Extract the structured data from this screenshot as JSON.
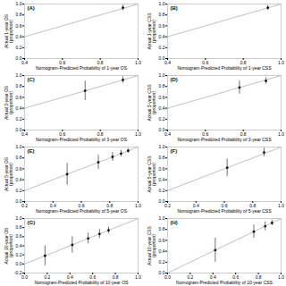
{
  "chart_data": [
    {
      "type": "scatter",
      "annotation": "(A)",
      "x_label": "Nomogram-Predicted Probability of 1-year OS",
      "y_label": "Actual 1-year OS\n(proportion)",
      "xlim": [
        0.4,
        1.0
      ],
      "ylim": [
        0.0,
        1.0
      ],
      "xticks": [
        0.4,
        0.6,
        0.8,
        {
          "value": 1.0,
          "label": "1.0"
        }
      ],
      "yticks": [
        {
          "value": 0.0,
          "label": "0.0"
        },
        0.2,
        0.4,
        0.6,
        0.8,
        {
          "value": 1.0,
          "label": "1.0"
        }
      ],
      "series": [
        {
          "type": "line",
          "color": "#b0b0b0",
          "x": [
            0,
            1
          ],
          "values": [
            0,
            1
          ]
        },
        {
          "type": "scatter",
          "color": "#111111",
          "marker": "circle",
          "x": [
            0.92
          ],
          "values": [
            0.93
          ],
          "errors_lo": [
            0.05
          ],
          "errors_hi": [
            0.05
          ]
        }
      ]
    },
    {
      "type": "scatter",
      "annotation": "(B)",
      "x_label": "Nomogram-Predicted Probability of 1-year CSS",
      "y_label": "Actual 1-year CSS\n(proportion)",
      "xlim": [
        0.4,
        1.0
      ],
      "ylim": [
        0.0,
        1.0
      ],
      "xticks": [
        0.4,
        0.6,
        0.8,
        {
          "value": 1.0,
          "label": "1.0"
        }
      ],
      "yticks": [
        {
          "value": 0.0,
          "label": "0.0"
        },
        0.2,
        0.4,
        0.6,
        0.8,
        {
          "value": 1.0,
          "label": "1.0"
        }
      ],
      "series": [
        {
          "type": "line",
          "color": "#b0b0b0",
          "x": [
            0,
            1
          ],
          "values": [
            0,
            1
          ]
        },
        {
          "type": "scatter",
          "color": "#111111",
          "marker": "circle",
          "x": [
            0.93
          ],
          "values": [
            0.93
          ],
          "errors_lo": [
            0.04
          ],
          "errors_hi": [
            0.04
          ]
        }
      ]
    },
    {
      "type": "scatter",
      "annotation": "(C)",
      "x_label": "Nomogram-Predicted Probability of 3-year OS",
      "y_label": "Actual 3-year OS\n(proportion)",
      "xlim": [
        0.4,
        1.0
      ],
      "ylim": [
        0.0,
        1.0
      ],
      "xticks": [
        0.4,
        0.6,
        0.8,
        {
          "value": 1.0,
          "label": "1.0"
        }
      ],
      "yticks": [
        {
          "value": 0.0,
          "label": "0.0"
        },
        0.2,
        0.4,
        0.6,
        0.8,
        {
          "value": 1.0,
          "label": "1.0"
        }
      ],
      "series": [
        {
          "type": "line",
          "color": "#b0b0b0",
          "x": [
            0,
            1
          ],
          "values": [
            0,
            1
          ]
        },
        {
          "type": "scatter",
          "color": "#111111",
          "marker": "circle",
          "x": [
            0.72,
            0.92
          ],
          "values": [
            0.72,
            0.92
          ],
          "errors_lo": [
            0.18,
            0.06
          ],
          "errors_hi": [
            0.18,
            0.06
          ]
        }
      ]
    },
    {
      "type": "scatter",
      "annotation": "(D)",
      "x_label": "Nomogram-Predicted Probability of 3-year CSS",
      "y_label": "Actual 3-year CSS\n(proportion)",
      "xlim": [
        0.4,
        1.0
      ],
      "ylim": [
        0.0,
        1.0
      ],
      "xticks": [
        0.4,
        0.6,
        0.8,
        {
          "value": 1.0,
          "label": "1.0"
        }
      ],
      "yticks": [
        {
          "value": 0.0,
          "label": "0.0"
        },
        0.2,
        0.4,
        0.6,
        0.8,
        {
          "value": 1.0,
          "label": "1.0"
        }
      ],
      "series": [
        {
          "type": "line",
          "color": "#b0b0b0",
          "x": [
            0,
            1
          ],
          "values": [
            0,
            1
          ]
        },
        {
          "type": "scatter",
          "color": "#111111",
          "marker": "circle",
          "x": [
            0.78,
            0.92
          ],
          "values": [
            0.78,
            0.9
          ],
          "errors_lo": [
            0.12,
            0.06
          ],
          "errors_hi": [
            0.12,
            0.06
          ]
        }
      ]
    },
    {
      "type": "scatter",
      "annotation": "(E)",
      "x_label": "Nomogram-Predicted Probability of 5-year OS",
      "y_label": "Actual 5-year OS\n(proportion)",
      "xlim": [
        0.2,
        1.0
      ],
      "ylim": [
        0.0,
        1.0
      ],
      "xticks": [
        0.2,
        0.4,
        0.6,
        0.8,
        {
          "value": 1.0,
          "label": "1.0"
        }
      ],
      "yticks": [
        {
          "value": 0.0,
          "label": "0.0"
        },
        0.2,
        0.4,
        0.6,
        0.8,
        {
          "value": 1.0,
          "label": "1.0"
        }
      ],
      "series": [
        {
          "type": "line",
          "color": "#b0b0b0",
          "x": [
            0,
            1
          ],
          "values": [
            0,
            1
          ]
        },
        {
          "type": "scatter",
          "color": "#111111",
          "marker": "circle",
          "x": [
            0.5,
            0.72,
            0.82,
            0.88,
            0.93
          ],
          "values": [
            0.5,
            0.72,
            0.82,
            0.88,
            0.93
          ],
          "errors_lo": [
            0.2,
            0.13,
            0.08,
            0.06,
            0.04
          ],
          "errors_hi": [
            0.2,
            0.13,
            0.08,
            0.06,
            0.04
          ]
        }
      ]
    },
    {
      "type": "scatter",
      "annotation": "(F)",
      "x_label": "Nomogram-Predicted Probability of 5-year CSS",
      "y_label": "Actual 5-year CSS\n(proportion)",
      "xlim": [
        0.2,
        1.0
      ],
      "ylim": [
        0.0,
        1.0
      ],
      "xticks": [
        0.2,
        0.4,
        0.6,
        0.8,
        {
          "value": 1.0,
          "label": "1.0"
        }
      ],
      "yticks": [
        {
          "value": 0.0,
          "label": "0.0"
        },
        0.2,
        0.4,
        0.6,
        0.8,
        {
          "value": 1.0,
          "label": "1.0"
        }
      ],
      "series": [
        {
          "type": "line",
          "color": "#b0b0b0",
          "x": [
            0,
            1
          ],
          "values": [
            0,
            1
          ]
        },
        {
          "type": "scatter",
          "color": "#111111",
          "marker": "circle",
          "x": [
            0.62,
            0.88
          ],
          "values": [
            0.62,
            0.9
          ],
          "errors_lo": [
            0.16,
            0.08
          ],
          "errors_hi": [
            0.16,
            0.08
          ]
        }
      ]
    },
    {
      "type": "scatter",
      "annotation": "(G)",
      "x_label": "Nomogram-Predicted Probability of 10-year OS",
      "y_label": "Actual 10-year OS\n(proportion)",
      "xlim": [
        0.0,
        1.0
      ],
      "ylim": [
        -0.2,
        1.0
      ],
      "xticks": [
        {
          "value": 0.0,
          "label": "0.0"
        },
        0.2,
        0.4,
        0.6,
        0.8,
        {
          "value": 1.0,
          "label": "1.0"
        }
      ],
      "yticks": [
        -0.2,
        {
          "value": 0.0,
          "label": "0.0"
        },
        0.2,
        0.4,
        0.6,
        0.8,
        {
          "value": 1.0,
          "label": "1.0"
        }
      ],
      "series": [
        {
          "type": "line",
          "color": "#b0b0b0",
          "x": [
            0,
            1
          ],
          "values": [
            0,
            1
          ]
        },
        {
          "type": "scatter",
          "color": "#111111",
          "marker": "circle",
          "x": [
            0.18,
            0.42,
            0.56,
            0.66,
            0.74
          ],
          "values": [
            0.18,
            0.42,
            0.56,
            0.66,
            0.74
          ],
          "errors_lo": [
            0.22,
            0.18,
            0.12,
            0.1,
            0.07
          ],
          "errors_hi": [
            0.22,
            0.18,
            0.12,
            0.1,
            0.07
          ]
        }
      ]
    },
    {
      "type": "scatter",
      "annotation": "(H)",
      "x_label": "Nomogram-Predicted Probability of 10-year CSS",
      "y_label": "Actual 10-year CSS\n(proportion)",
      "xlim": [
        0.0,
        1.0
      ],
      "ylim": [
        0.0,
        1.0
      ],
      "xticks": [
        {
          "value": 0.0,
          "label": "0.0"
        },
        0.2,
        0.4,
        0.6,
        0.8,
        {
          "value": 1.0,
          "label": "1.0"
        }
      ],
      "yticks": [
        {
          "value": 0.0,
          "label": "0.0"
        },
        0.2,
        0.4,
        0.6,
        0.8,
        {
          "value": 1.0,
          "label": "1.0"
        }
      ],
      "series": [
        {
          "type": "line",
          "color": "#b0b0b0",
          "x": [
            0,
            1
          ],
          "values": [
            0,
            1
          ]
        },
        {
          "type": "scatter",
          "color": "#111111",
          "marker": "circle",
          "x": [
            0.42,
            0.76,
            0.86,
            0.92
          ],
          "values": [
            0.42,
            0.76,
            0.86,
            0.92
          ],
          "errors_lo": [
            0.22,
            0.12,
            0.08,
            0.05
          ],
          "errors_hi": [
            0.22,
            0.12,
            0.08,
            0.05
          ]
        }
      ]
    }
  ]
}
